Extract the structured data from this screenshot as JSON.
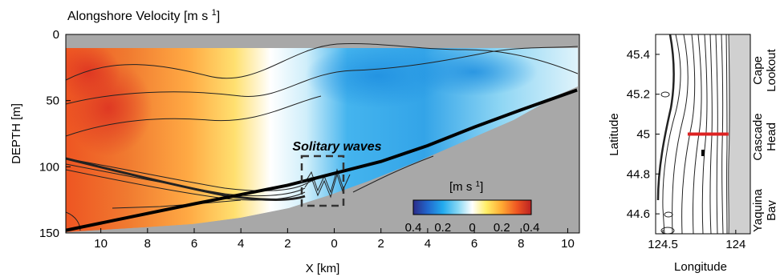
{
  "chart_data": [
    {
      "type": "heatmap",
      "title": "Alongshore Velocity [m s ",
      "title_sup": "1",
      "title_close": "]",
      "xlabel": "X [km]",
      "ylabel": "DEPTH [m]",
      "xlim": [
        11.5,
        -10.5
      ],
      "ylim": [
        150,
        0
      ],
      "x_ticks": [
        "10",
        "8",
        "6",
        "4",
        "2",
        "0",
        "2",
        "4",
        "6",
        "8",
        "10"
      ],
      "x_tick_values": [
        10,
        8,
        6,
        4,
        2,
        0,
        -2,
        -4,
        -6,
        -8,
        -10
      ],
      "y_ticks": [
        "0",
        "50",
        "100",
        "150"
      ],
      "y_tick_values": [
        0,
        50,
        100,
        150
      ],
      "annotation": "Solitary waves",
      "colorbar": {
        "label": "[m s ",
        "label_sup": "1",
        "label_close": "]",
        "ticks": [
          "0.4",
          "0.2",
          "0",
          "0.2",
          "0.4"
        ],
        "tick_values": [
          -0.4,
          -0.2,
          0,
          0.2,
          0.4
        ],
        "colors": [
          "#2b2b88",
          "#2266cc",
          "#22aaee",
          "#88d8f4",
          "#ffffff",
          "#ffee66",
          "#ffaa33",
          "#ee5522",
          "#bb2222"
        ]
      },
      "velocity_field": [
        {
          "x": 10.0,
          "depth": 60,
          "value": 0.35
        },
        {
          "x": 8.0,
          "depth": 30,
          "value": 0.3
        },
        {
          "x": 6.0,
          "depth": 60,
          "value": 0.2
        },
        {
          "x": 4.0,
          "depth": 40,
          "value": 0.1
        },
        {
          "x": 2.0,
          "depth": 40,
          "value": 0.0
        },
        {
          "x": 0.0,
          "depth": 40,
          "value": -0.15
        },
        {
          "x": -2.0,
          "depth": 40,
          "value": -0.2
        },
        {
          "x": -5.0,
          "depth": 30,
          "value": -0.15
        },
        {
          "x": -9.0,
          "depth": 20,
          "value": -0.1
        }
      ],
      "bottom_depth": [
        {
          "x": 11.5,
          "depth": 148
        },
        {
          "x": 6.0,
          "depth": 128
        },
        {
          "x": 2.0,
          "depth": 114
        },
        {
          "x": 0.0,
          "depth": 105
        },
        {
          "x": -2.0,
          "depth": 96
        },
        {
          "x": -4.0,
          "depth": 84
        },
        {
          "x": -6.0,
          "depth": 70
        },
        {
          "x": -8.0,
          "depth": 57
        },
        {
          "x": -10.4,
          "depth": 42
        }
      ]
    },
    {
      "type": "map",
      "xlabel": "Longitude",
      "ylabel": "Latitude",
      "xlim": [
        124.55,
        123.9
      ],
      "ylim": [
        44.5,
        45.5
      ],
      "x_ticks": [
        "124.5",
        "124"
      ],
      "x_tick_values": [
        124.5,
        124.0
      ],
      "y_ticks": [
        "45.4",
        "45.2",
        "45",
        "44.8",
        "44.6"
      ],
      "y_tick_values": [
        45.4,
        45.2,
        45.0,
        44.8,
        44.6
      ],
      "section_line": {
        "lat": 45.0,
        "lon_start": 124.33,
        "lon_end": 124.05
      },
      "place_labels": [
        {
          "line1": "Cape",
          "line2": "Lookout"
        },
        {
          "line1": "Cascade",
          "line2": "Head"
        },
        {
          "line1": "Yaquina",
          "line2": "Bay"
        }
      ]
    }
  ]
}
